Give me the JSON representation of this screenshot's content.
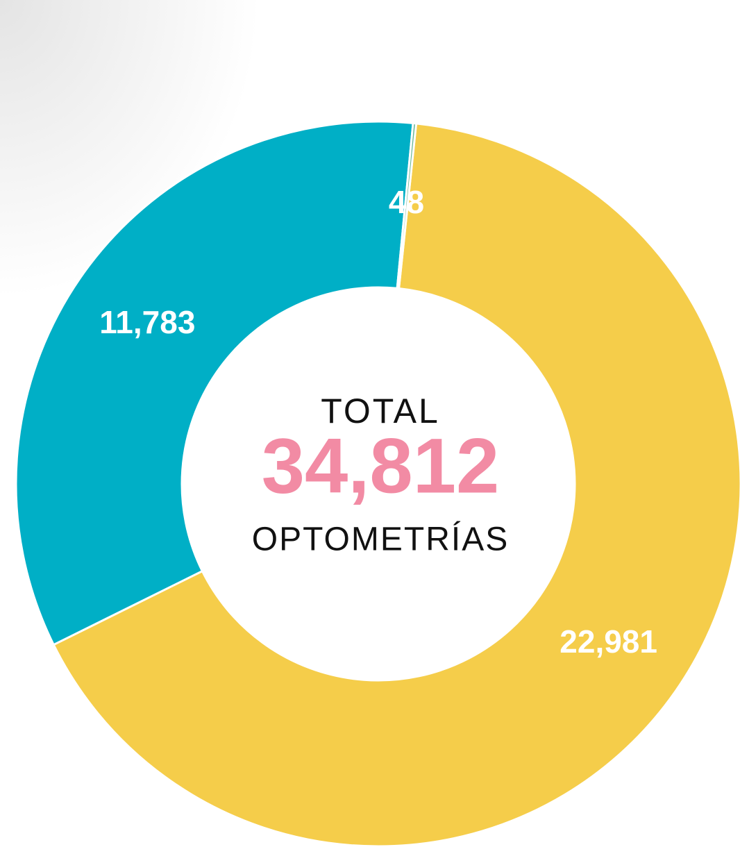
{
  "chart_data": {
    "type": "donut",
    "values": [
      22981,
      11783,
      48
    ],
    "value_labels": [
      "22,981",
      "11,783",
      "48"
    ],
    "colors": [
      "#f5cd4a",
      "#00afc6",
      "#64b594"
    ],
    "center_text": {
      "top": "TOTAL",
      "total": {
        "value": 34812,
        "label": "34,812"
      },
      "bottom": "OPTOMETRÍAS"
    }
  }
}
